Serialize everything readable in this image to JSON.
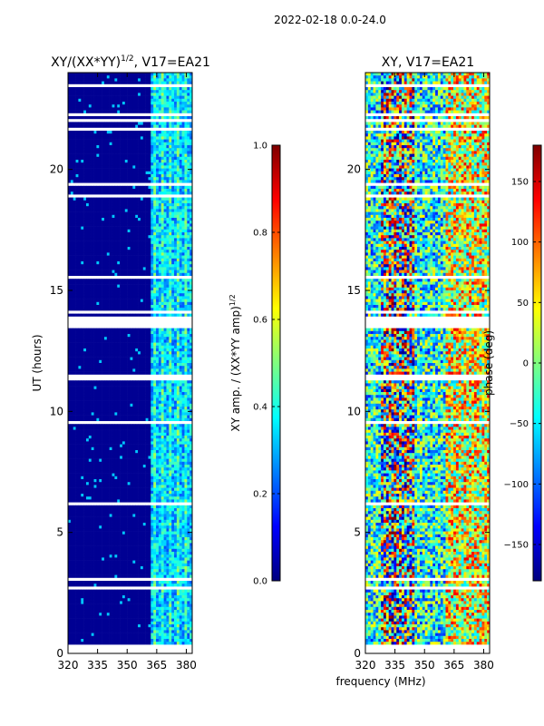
{
  "figure": {
    "suptitle": "2022-02-18 0.0-24.0",
    "xlabel": "frequency (MHz)"
  },
  "colors": {
    "jet": [
      "#00007f",
      "#0000ff",
      "#007fff",
      "#00ffff",
      "#7fff7f",
      "#ffff00",
      "#ff7f00",
      "#ff0000",
      "#7f0000"
    ],
    "flag_gap": "#ffffff"
  },
  "chart_data": [
    {
      "type": "heatmap",
      "title": "XY/(XX*YY)",
      "title_exponent": "1/2",
      "title_suffix": ", V17=EA21",
      "xlabel": "",
      "ylabel": "UT (hours)",
      "xlim": [
        320,
        383
      ],
      "ylim": [
        0,
        24
      ],
      "xticks": [
        320,
        335,
        350,
        365,
        380
      ],
      "xtick_labels": [
        "320",
        "335",
        "350",
        "365",
        "380"
      ],
      "yticks": [
        0,
        5,
        10,
        15,
        20
      ],
      "ytick_labels": [
        "0",
        "5",
        "10",
        "15",
        "20"
      ],
      "colorbar": {
        "label": "XY amp. / (XX*YY amp)",
        "label_exponent": "1/2",
        "range": [
          0.0,
          1.0
        ],
        "ticks": [
          0.0,
          0.2,
          0.4,
          0.6,
          0.8,
          1.0
        ],
        "tick_labels": [
          "0.0",
          "0.2",
          "0.4",
          "0.6",
          "0.8",
          "1.0"
        ]
      },
      "description_values": {
        "baseline_level": 0.02,
        "band_362_382_level": 0.3
      }
    },
    {
      "type": "heatmap",
      "title": "XY, V17=EA21",
      "xlabel": "frequency (MHz)",
      "ylabel": "",
      "xlim": [
        320,
        383
      ],
      "ylim": [
        0,
        24
      ],
      "xticks": [
        320,
        335,
        350,
        365,
        380
      ],
      "xtick_labels": [
        "320",
        "335",
        "350",
        "365",
        "380"
      ],
      "yticks": [
        0,
        5,
        10,
        15,
        20
      ],
      "ytick_labels": [
        "0",
        "5",
        "10",
        "15",
        "20"
      ],
      "colorbar": {
        "label": "phase (deg)",
        "range": [
          -180,
          180
        ],
        "ticks": [
          -150,
          -100,
          -50,
          0,
          50,
          100,
          150
        ],
        "tick_labels": [
          "−150",
          "−100",
          "−50",
          "0",
          "50",
          "100",
          "150"
        ]
      }
    }
  ],
  "flagged_ut_ranges_hours": [
    [
      0.0,
      0.4
    ],
    [
      0.55,
      0.62
    ],
    [
      0.9,
      1.0
    ],
    [
      2.58,
      2.72
    ],
    [
      3.0,
      3.08
    ],
    [
      6.1,
      6.3
    ],
    [
      9.45,
      9.6
    ],
    [
      11.3,
      11.55
    ],
    [
      13.45,
      13.95
    ],
    [
      14.1,
      14.2
    ],
    [
      15.5,
      15.6
    ],
    [
      18.8,
      18.9
    ],
    [
      19.3,
      19.45
    ],
    [
      21.6,
      21.75
    ],
    [
      21.95,
      22.05
    ],
    [
      22.2,
      22.3
    ],
    [
      23.4,
      23.5
    ]
  ]
}
